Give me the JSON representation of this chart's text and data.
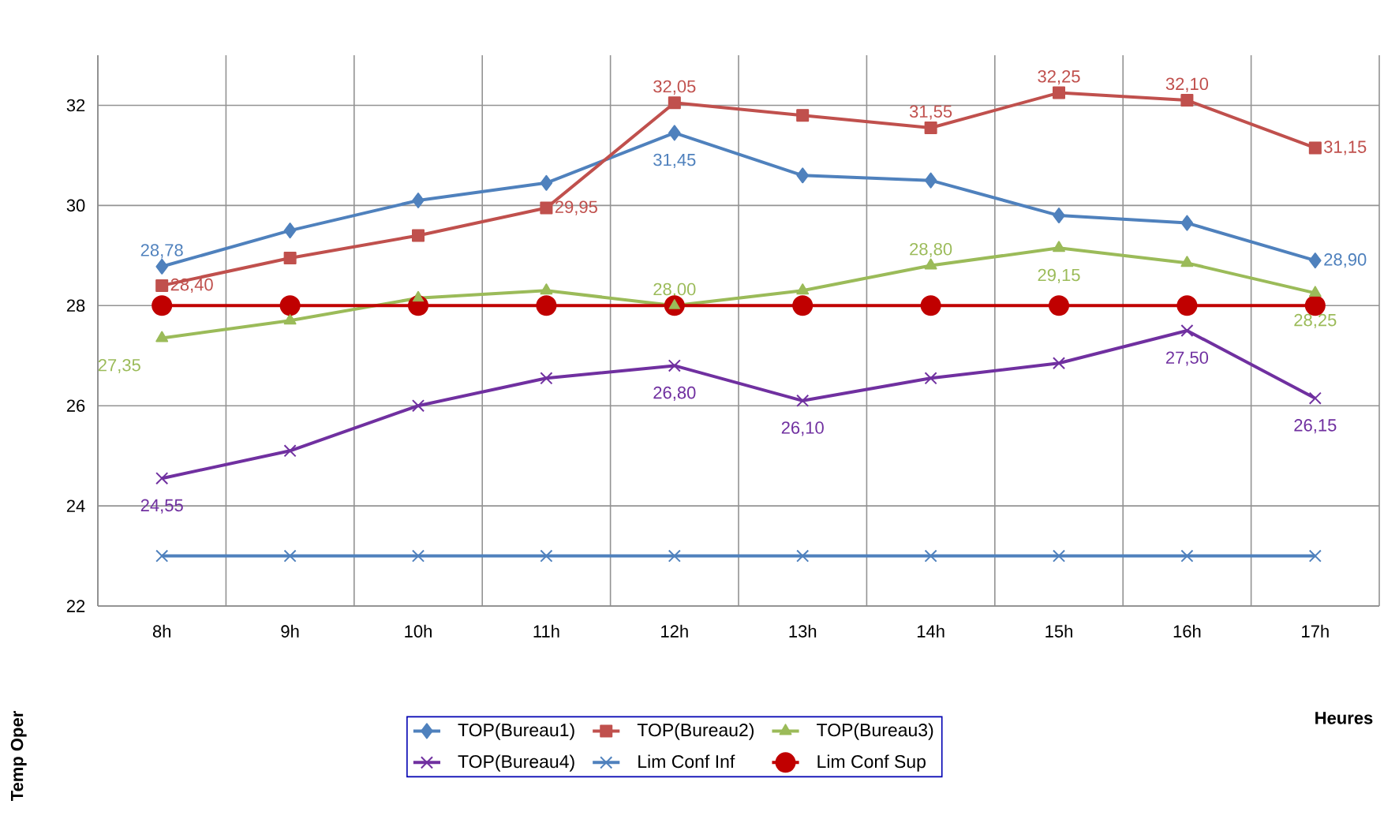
{
  "chart_data": {
    "type": "line",
    "xlabel": "Heures",
    "ylabel": "Temp Oper",
    "categories": [
      "8h",
      "9h",
      "10h",
      "11h",
      "12h",
      "13h",
      "14h",
      "15h",
      "16h",
      "17h"
    ],
    "ylim": [
      22,
      33
    ],
    "yticks": [
      22,
      24,
      26,
      28,
      30,
      32
    ],
    "grid": true,
    "legend": "bottom",
    "series": [
      {
        "name": "TOP(Bureau1)",
        "color": "#4f81bd",
        "marker": "diamond",
        "values": [
          28.78,
          29.5,
          30.1,
          30.45,
          31.45,
          30.6,
          30.5,
          29.8,
          29.65,
          28.9
        ],
        "value_labels": [
          "28,78",
          null,
          null,
          null,
          "31,45",
          null,
          null,
          null,
          null,
          "28,90"
        ]
      },
      {
        "name": "TOP(Bureau2)",
        "color": "#c0504d",
        "marker": "square",
        "values": [
          28.4,
          28.95,
          29.4,
          29.95,
          32.05,
          31.8,
          31.55,
          32.25,
          32.1,
          31.15
        ],
        "value_labels": [
          "28,40",
          null,
          null,
          "29,95",
          "32,05",
          null,
          "31,55",
          "32,25",
          "32,10",
          "31,15"
        ]
      },
      {
        "name": "TOP(Bureau3)",
        "color": "#9bbb59",
        "marker": "triangle",
        "values": [
          27.35,
          27.7,
          28.15,
          28.3,
          28.0,
          28.3,
          28.8,
          29.15,
          28.85,
          28.25
        ],
        "value_labels": [
          "27,35",
          null,
          null,
          null,
          "28,00",
          null,
          "28,80",
          "29,15",
          null,
          "28,25"
        ]
      },
      {
        "name": "TOP(Bureau4)",
        "color": "#7030a0",
        "marker": "cross",
        "values": [
          24.55,
          25.1,
          26.0,
          26.55,
          26.8,
          26.1,
          26.55,
          26.85,
          27.5,
          26.15
        ],
        "value_labels": [
          "24,55",
          null,
          null,
          null,
          "26,80",
          "26,10",
          null,
          null,
          "27,50",
          "26,15"
        ]
      },
      {
        "name": "Lim Conf Inf",
        "color": "#4f81bd",
        "marker": "cross",
        "values": [
          23,
          23,
          23,
          23,
          23,
          23,
          23,
          23,
          23,
          23
        ]
      },
      {
        "name": "Lim Conf Sup",
        "color": "#c00000",
        "marker": "circle",
        "values": [
          28,
          28,
          28,
          28,
          28,
          28,
          28,
          28,
          28,
          28
        ]
      }
    ]
  }
}
